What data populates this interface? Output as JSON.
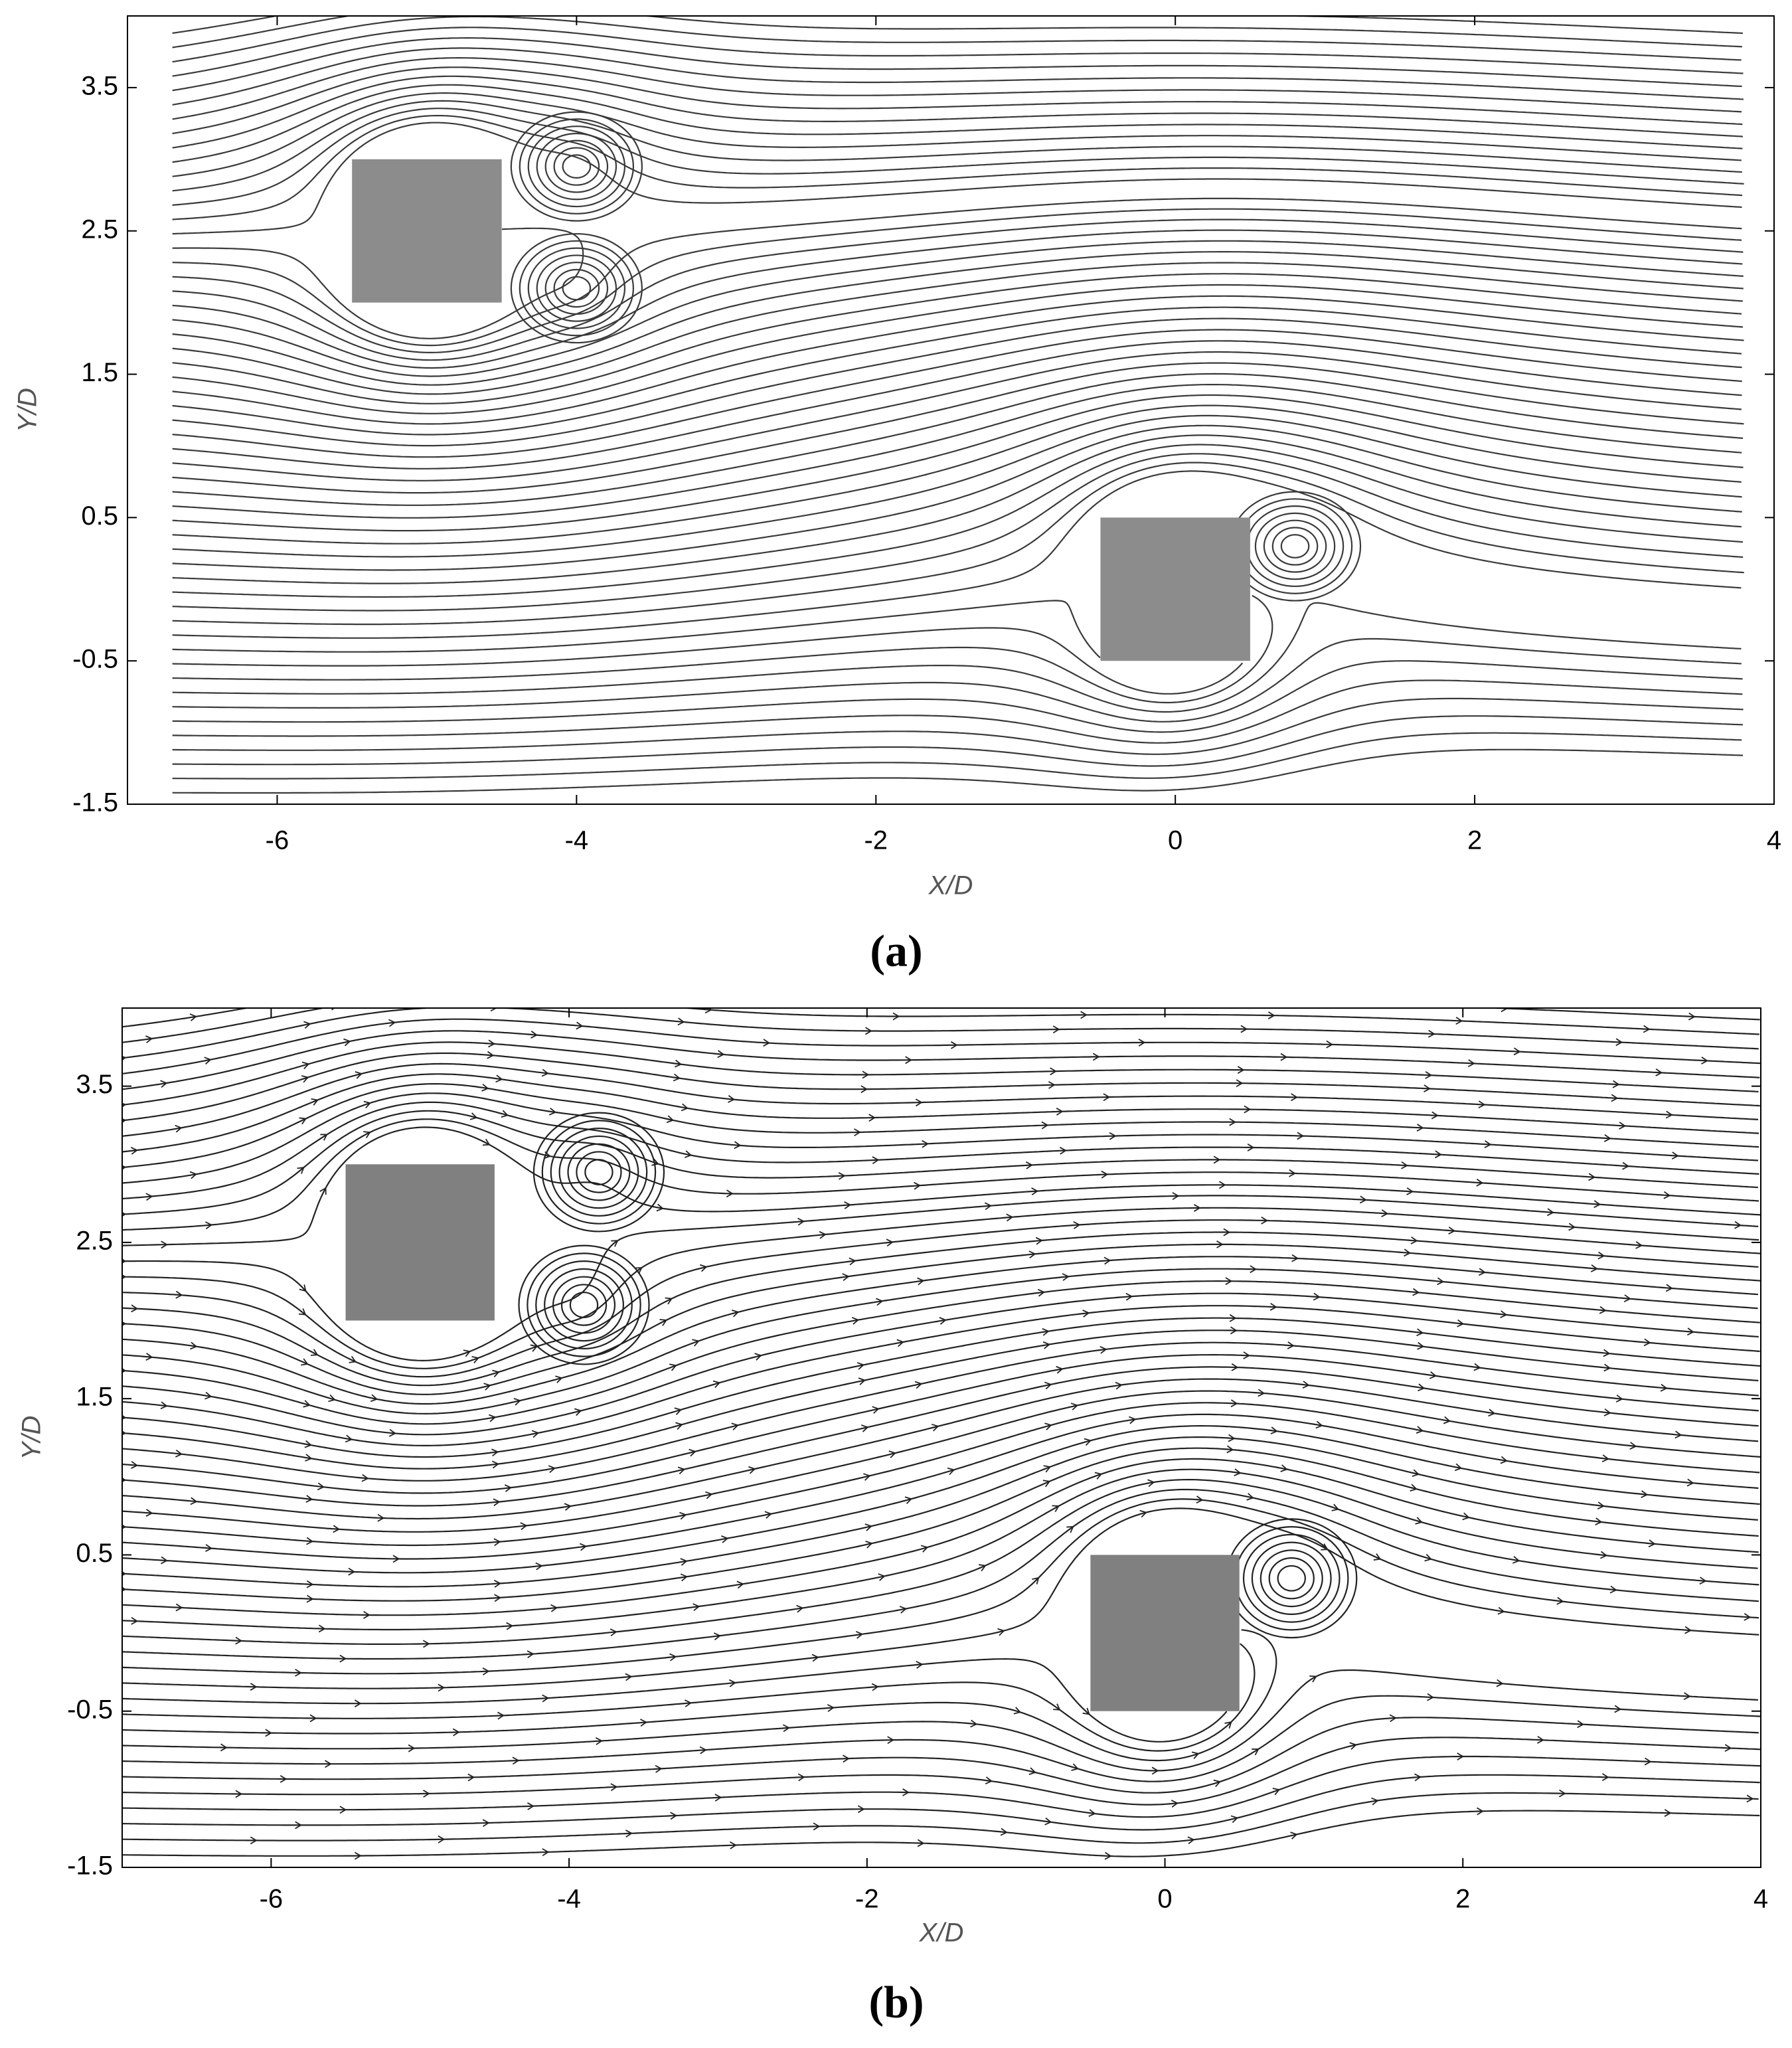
{
  "chart_data": [
    {
      "type": "streamline",
      "panel_label": "(a)",
      "xlabel": "X/D",
      "ylabel": "Y/D",
      "xlim": [
        -7,
        4
      ],
      "ylim": [
        -1.5,
        4
      ],
      "xticks": [
        -6,
        -4,
        -2,
        0,
        2,
        4
      ],
      "yticks": [
        -1.5,
        -0.5,
        0.5,
        1.5,
        2.5,
        3.5
      ],
      "obstacles": [
        {
          "x": [
            -5.5,
            -4.5
          ],
          "y": [
            2,
            3
          ]
        },
        {
          "x": [
            -0.5,
            0.5
          ],
          "y": [
            -0.5,
            0.5
          ]
        }
      ],
      "obstacle_color": "#8c8c8c",
      "line_color": "#3a3a3a",
      "arrows": false
    },
    {
      "type": "streamline",
      "panel_label": "(b)",
      "xlabel": "X/D",
      "ylabel": "Y/D",
      "xlim": [
        -7,
        4
      ],
      "ylim": [
        -1.5,
        4
      ],
      "xticks": [
        -6,
        -4,
        -2,
        0,
        2,
        4
      ],
      "yticks": [
        -1.5,
        -0.5,
        0.5,
        1.5,
        2.5,
        3.5
      ],
      "obstacles": [
        {
          "x": [
            -5.5,
            -4.5
          ],
          "y": [
            2,
            3
          ]
        },
        {
          "x": [
            -0.5,
            0.5
          ],
          "y": [
            -0.5,
            0.5
          ]
        }
      ],
      "obstacle_color": "#808080",
      "line_color": "#222222",
      "arrows": true
    }
  ]
}
